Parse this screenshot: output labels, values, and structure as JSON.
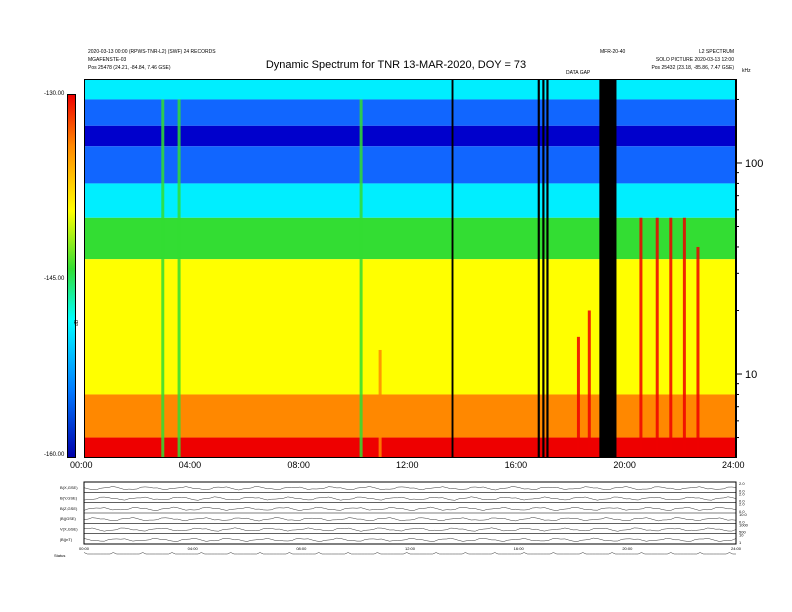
{
  "header": {
    "title": "Dynamic Spectrum for TNR 13-MAR-2020, DOY = 73",
    "meta_left_1": "2020-03-13 00:00 (RPWS-TNR-L2) (SWF) 24 RECORDS",
    "meta_left_2": "MGAFENSTE-03",
    "meta_left_3": "Pos 25478 (24.21, -84.84, 7.46 GSE)",
    "meta_right_top": "MFR-20-40",
    "meta_right_corner": "L2 SPECTRUM",
    "meta_right_2": "SOLO PICTURE 2020-03-13 12:00",
    "meta_right_3": "Pos 25432 (23.18, -85.86, 7.47 GSE)",
    "data_gap_label": "DATA GAP"
  },
  "colors": {
    "red": "#ee0000",
    "orange": "#ff8800",
    "yellow": "#ffff00",
    "green": "#33dd33",
    "cyan": "#00eeff",
    "blue": "#1166ff",
    "dark_blue": "#0000cc",
    "black": "#000000"
  },
  "chart_data": [
    {
      "type": "heatmap",
      "title": "Dynamic Spectrum for TNR 13-MAR-2020, DOY = 73",
      "x_axis": {
        "label": "",
        "ticks": [
          "00:00",
          "04:00",
          "08:00",
          "12:00",
          "16:00",
          "20:00",
          "24:00"
        ],
        "range_hours": [
          0,
          24
        ]
      },
      "y_axis_right": {
        "label": "kHz",
        "scale": "log",
        "ticks": [
          10,
          100
        ],
        "range_khz": [
          4,
          250
        ]
      },
      "colorbar": {
        "label": "dB",
        "ticks": [
          "-130.00",
          "-145.00",
          "-160.00"
        ],
        "range_db": [
          -160,
          -130
        ]
      },
      "intensity_bands": [
        {
          "from_khz": 250,
          "to_khz": 200,
          "color": "cyan"
        },
        {
          "from_khz": 200,
          "to_khz": 150,
          "color": "blue"
        },
        {
          "from_khz": 150,
          "to_khz": 120,
          "color": "dark_blue"
        },
        {
          "from_khz": 120,
          "to_khz": 80,
          "color": "blue"
        },
        {
          "from_khz": 80,
          "to_khz": 55,
          "color": "cyan"
        },
        {
          "from_khz": 55,
          "to_khz": 35,
          "color": "green"
        },
        {
          "from_khz": 35,
          "to_khz": 8,
          "color": "yellow"
        },
        {
          "from_khz": 8,
          "to_khz": 5,
          "color": "orange"
        },
        {
          "from_khz": 5,
          "to_khz": 4,
          "color": "red"
        }
      ],
      "data_gaps_hours": [
        {
          "start": 13.53,
          "end": 13.6
        },
        {
          "start": 16.7,
          "end": 16.78
        },
        {
          "start": 16.87,
          "end": 16.95
        },
        {
          "start": 17.02,
          "end": 17.1
        },
        {
          "start": 18.97,
          "end": 19.6
        }
      ],
      "bursts_hours": [
        {
          "time": 2.9,
          "top_khz": 200,
          "color": "green"
        },
        {
          "time": 3.5,
          "top_khz": 200,
          "color": "green"
        },
        {
          "time": 10.2,
          "top_khz": 200,
          "color": "green"
        },
        {
          "time": 10.9,
          "top_khz": 13,
          "color": "orange"
        },
        {
          "time": 18.2,
          "top_khz": 15,
          "color": "red"
        },
        {
          "time": 18.6,
          "top_khz": 20,
          "color": "red"
        },
        {
          "time": 20.5,
          "top_khz": 55,
          "color": "red"
        },
        {
          "time": 21.1,
          "top_khz": 55,
          "color": "red"
        },
        {
          "time": 21.6,
          "top_khz": 55,
          "color": "red"
        },
        {
          "time": 22.1,
          "top_khz": 55,
          "color": "red"
        },
        {
          "time": 22.6,
          "top_khz": 40,
          "color": "red"
        }
      ]
    },
    {
      "type": "line",
      "title": "",
      "panels": [
        {
          "label": "B(X,GSE)",
          "right_ticks": [
            "2.0",
            "0.0"
          ]
        },
        {
          "label": "B(Y,GSE)",
          "right_ticks": [
            "2.0",
            "0.0"
          ]
        },
        {
          "label": "B(Z,GSE)",
          "right_ticks": [
            "2.0",
            "0.0"
          ]
        },
        {
          "label": "|B|(GSE)",
          "right_ticks": [
            "10.0",
            "0.0"
          ]
        },
        {
          "label": "V(X,GSE)",
          "right_ticks": [
            "1000",
            "500"
          ]
        },
        {
          "label": "|B|(nT)",
          "right_ticks": [
            "10",
            "1"
          ]
        }
      ],
      "x_ticks": [
        "00:00",
        "04:00",
        "08:00",
        "12:00",
        "16:00",
        "20:00",
        "24:00"
      ],
      "status_label": "Status"
    }
  ]
}
